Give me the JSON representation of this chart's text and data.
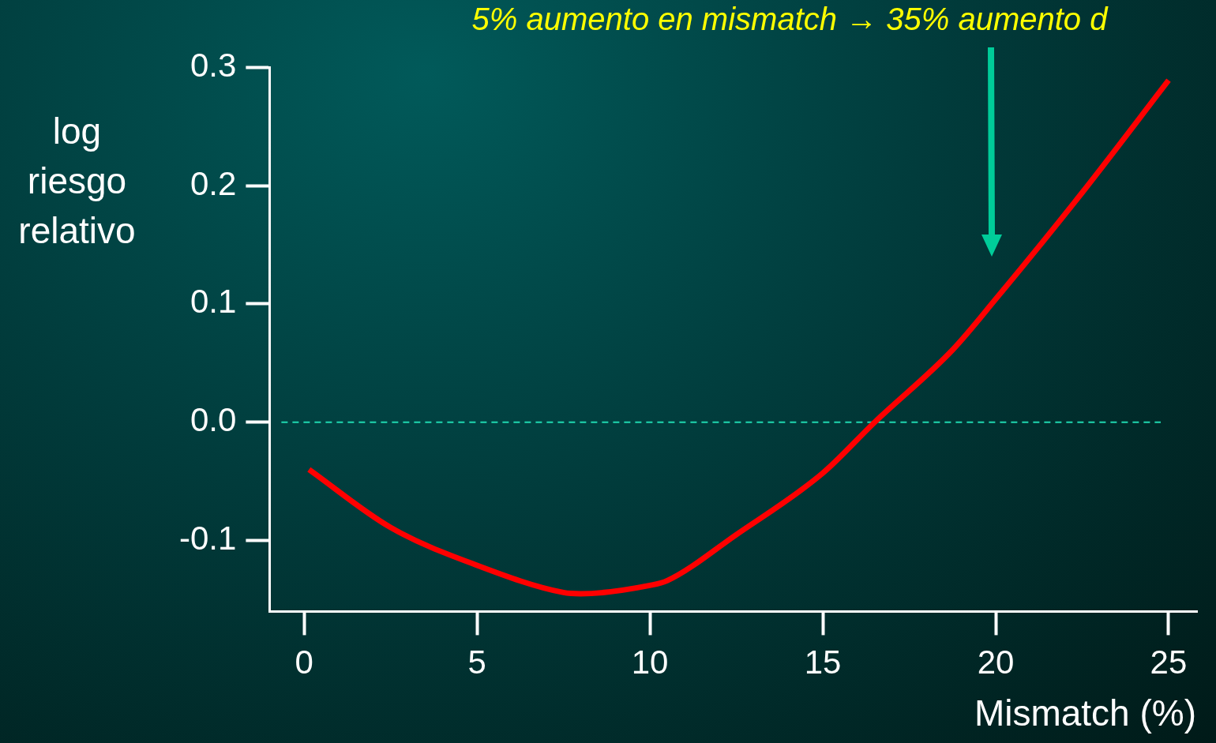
{
  "chart_data": {
    "type": "line",
    "title": "5% aumento en mismatch → 35% aumento d",
    "xlabel": "Mismatch (%)",
    "ylabel": "log riesgo relativo",
    "x": [
      0.14,
      2.5,
      5,
      7.5,
      8,
      10,
      10.5,
      12.5,
      15,
      16.5,
      18.75,
      20,
      22.5,
      25
    ],
    "series": [
      {
        "color": "#ff0000",
        "values": [
          -0.04,
          -0.089,
          -0.121,
          -0.144,
          -0.145,
          -0.138,
          -0.134,
          -0.095,
          -0.043,
          0,
          0.061,
          0.104,
          0.194,
          0.289
        ]
      }
    ],
    "xlim": [
      -1,
      25.8
    ],
    "ylim": [
      -0.16,
      0.3
    ],
    "xticks": [
      0,
      5,
      10,
      15,
      20,
      25
    ],
    "yticks": [
      -0.1,
      {
        "value": 0,
        "label": "0.0"
      },
      0.1,
      0.2,
      0.3
    ],
    "ref_lines": [
      {
        "axis": "y",
        "value": 0,
        "color": "#1fd8b0",
        "line_style": "dashed"
      }
    ],
    "grid": false,
    "legend": false,
    "marker": "none",
    "line_style": "solid"
  }
}
